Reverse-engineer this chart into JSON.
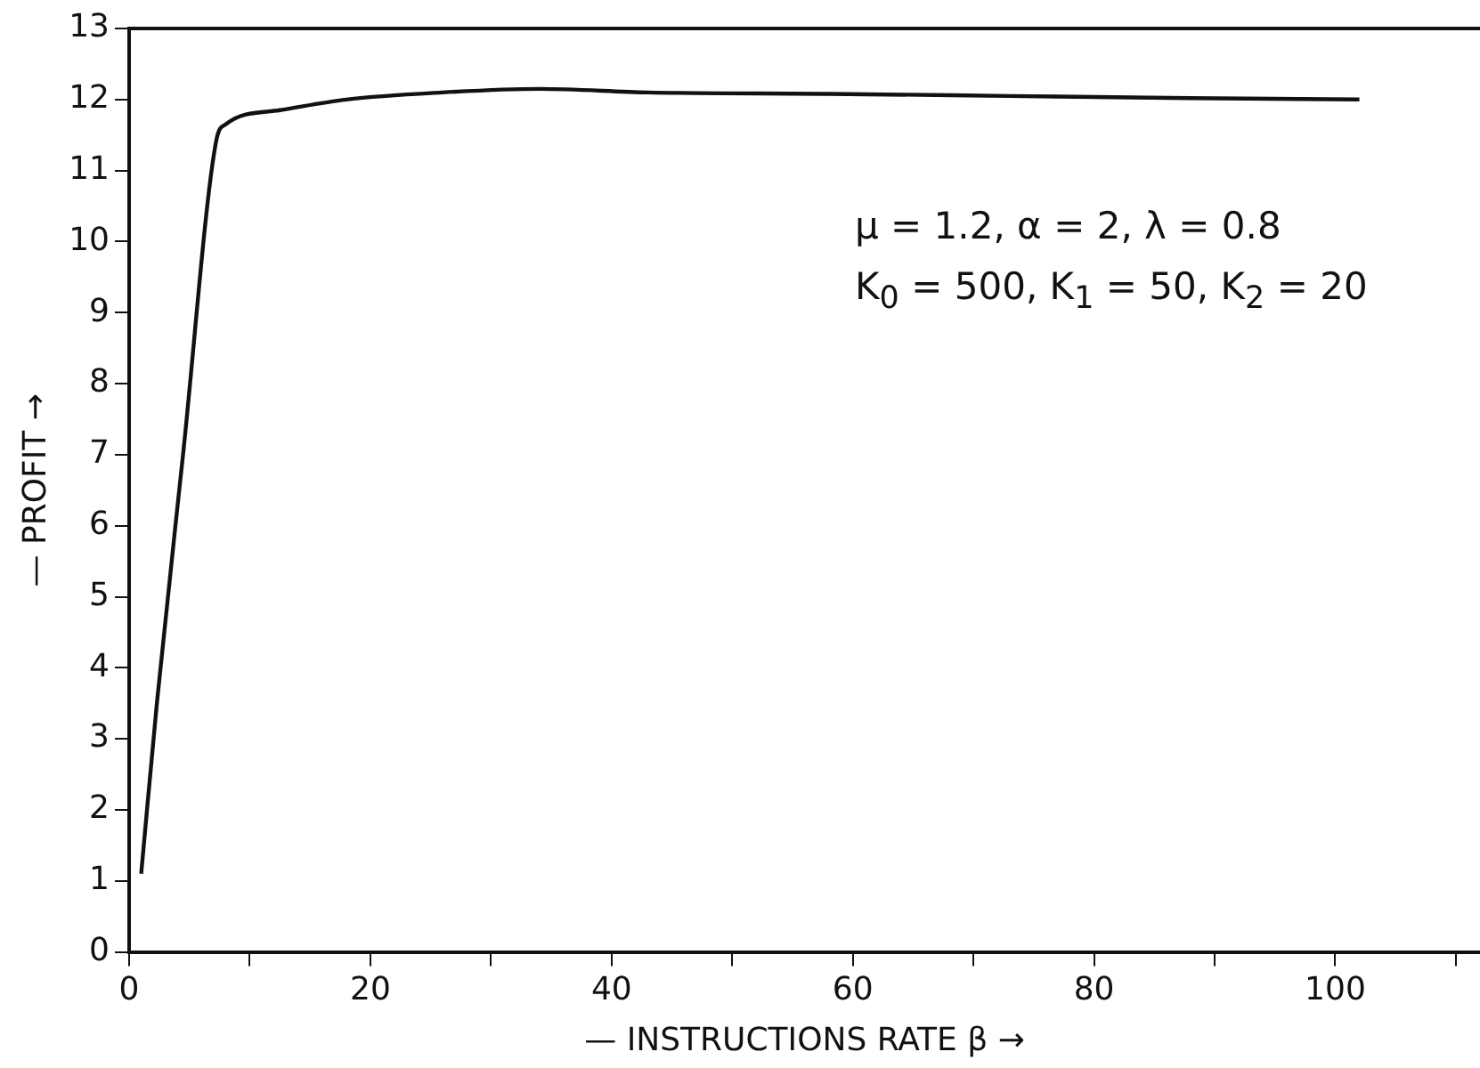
{
  "chart_data": {
    "type": "line",
    "xlabel": "— INSTRUCTIONS RATE β →",
    "ylabel": "— PROFIT →",
    "annotations": [
      "μ = 1.2, α = 2, λ = 0.8",
      "K$_{0}$ = 500, K$_{1}$ = 50, K$_{2}$ = 20"
    ],
    "x": [
      1,
      2.3,
      4.5,
      7.2,
      8,
      12.5,
      18,
      26,
      34,
      43,
      58,
      73,
      88,
      102
    ],
    "series": [
      {
        "color": "#111111",
        "values": [
          1.1,
          3.5,
          7.05,
          11.4,
          11.65,
          11.85,
          12.0,
          12.1,
          12.15,
          12.1,
          12.08,
          12.05,
          12.02,
          12.0
        ]
      }
    ],
    "xlim": [
      0,
      112
    ],
    "xticks": [
      0,
      {
        "value": 10,
        "label": null
      },
      20,
      {
        "value": 30,
        "label": null
      },
      40,
      {
        "value": 50,
        "label": null
      },
      60,
      {
        "value": 70,
        "label": null
      },
      80,
      {
        "value": 90,
        "label": null
      },
      100,
      {
        "value": 110,
        "label": null
      }
    ],
    "ylim": [
      0,
      13
    ],
    "yticks": [
      0,
      1,
      2,
      3,
      4,
      5,
      6,
      7,
      8,
      9,
      10,
      11,
      12,
      13
    ],
    "grid": false,
    "legend": false,
    "marker": "none",
    "line_style": "solid"
  }
}
